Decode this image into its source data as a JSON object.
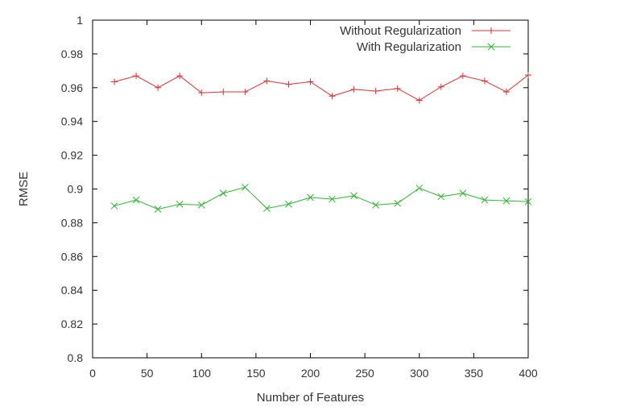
{
  "chart_data": {
    "type": "line",
    "xlabel": "Number of Features",
    "ylabel": "RMSE",
    "xlim": [
      0,
      400
    ],
    "ylim": [
      0.8,
      1.0
    ],
    "xticks": [
      0,
      50,
      100,
      150,
      200,
      250,
      300,
      350,
      400
    ],
    "xtick_labels": [
      "0",
      "50",
      "100",
      "150",
      "200",
      "250",
      "300",
      "350",
      "400"
    ],
    "yticks": [
      0.8,
      0.82,
      0.84,
      0.86,
      0.88,
      0.9,
      0.92,
      0.94,
      0.96,
      0.98,
      1.0
    ],
    "ytick_labels": [
      "0.8",
      "0.82",
      "0.84",
      "0.86",
      "0.88",
      "0.9",
      "0.92",
      "0.94",
      "0.96",
      "0.98",
      "1"
    ],
    "grid": false,
    "legend_position": "top-right",
    "x": [
      20,
      40,
      60,
      80,
      100,
      120,
      140,
      160,
      180,
      200,
      220,
      240,
      260,
      280,
      300,
      320,
      340,
      360,
      380,
      400
    ],
    "series": [
      {
        "name": "Without Regularization",
        "color": "#e03030",
        "marker": "plus",
        "values": [
          0.9635,
          0.967,
          0.96,
          0.967,
          0.957,
          0.9575,
          0.9575,
          0.964,
          0.962,
          0.9635,
          0.955,
          0.959,
          0.958,
          0.9595,
          0.9525,
          0.9605,
          0.967,
          0.964,
          0.9575,
          0.9675
        ]
      },
      {
        "name": "With Regularization",
        "color": "#2eb82e",
        "marker": "cross",
        "values": [
          0.89,
          0.8935,
          0.888,
          0.891,
          0.8905,
          0.8975,
          0.901,
          0.8885,
          0.891,
          0.895,
          0.894,
          0.896,
          0.8905,
          0.8915,
          0.9005,
          0.8955,
          0.8975,
          0.8935,
          0.893,
          0.8925
        ]
      }
    ]
  }
}
